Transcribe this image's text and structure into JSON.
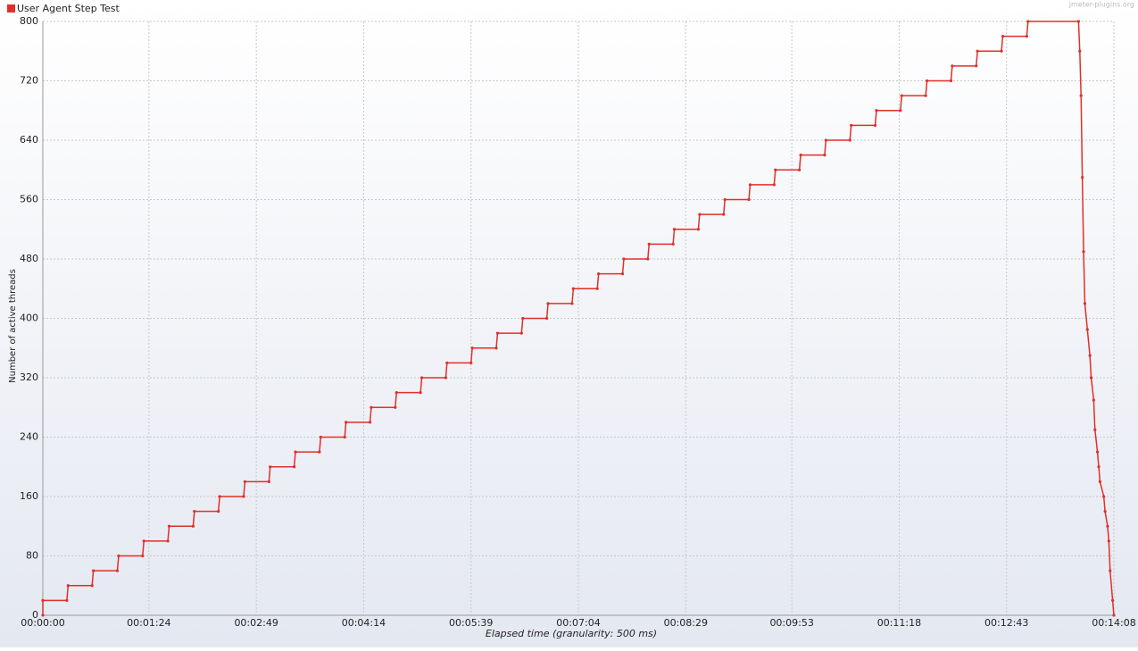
{
  "chart_data": {
    "type": "line",
    "title_watermark": "jmeter-plugins.org",
    "x_label": "Elapsed time (granularity: 500 ms)",
    "y_label": "Number of active threads",
    "legend": "top-left",
    "grid": true,
    "xlim": [
      0,
      848
    ],
    "ylim": [
      0,
      800
    ],
    "xticks": [
      {
        "value": 0,
        "label": "00:00:00"
      },
      {
        "value": 84,
        "label": "00:01:24"
      },
      {
        "value": 169,
        "label": "00:02:49"
      },
      {
        "value": 254,
        "label": "00:04:14"
      },
      {
        "value": 339,
        "label": "00:05:39"
      },
      {
        "value": 424,
        "label": "00:07:04"
      },
      {
        "value": 509,
        "label": "00:08:29"
      },
      {
        "value": 593,
        "label": "00:09:53"
      },
      {
        "value": 678,
        "label": "00:11:18"
      },
      {
        "value": 763,
        "label": "00:12:43"
      },
      {
        "value": 848,
        "label": "00:14:08"
      }
    ],
    "yticks": [
      0,
      80,
      160,
      240,
      320,
      400,
      480,
      560,
      640,
      720,
      800
    ],
    "x": [
      0,
      0,
      19,
      20,
      39,
      40,
      59,
      60,
      79,
      80,
      99,
      100,
      119,
      120,
      139,
      140,
      159,
      160,
      179,
      180,
      199,
      200,
      219,
      220,
      239,
      240,
      259,
      260,
      279,
      280,
      299,
      300,
      319,
      320,
      339,
      340,
      359,
      360,
      379,
      380,
      399,
      400,
      419,
      420,
      439,
      440,
      459,
      460,
      479,
      480,
      499,
      500,
      519,
      520,
      539,
      540,
      559,
      560,
      579,
      580,
      599,
      600,
      619,
      620,
      639,
      640,
      659,
      660,
      679,
      680,
      699,
      700,
      719,
      720,
      739,
      740,
      759,
      760,
      779,
      780,
      820,
      821,
      822,
      823,
      824,
      825,
      827,
      829,
      830,
      832,
      833,
      835,
      836,
      837,
      840,
      841,
      843,
      844,
      845,
      847,
      848
    ],
    "series": [
      {
        "name": "User Agent Step Test",
        "color": "#e0302a",
        "values": [
          0,
          20,
          20,
          40,
          40,
          60,
          60,
          80,
          80,
          100,
          100,
          120,
          120,
          140,
          140,
          160,
          160,
          180,
          180,
          200,
          200,
          220,
          220,
          240,
          240,
          260,
          260,
          280,
          280,
          300,
          300,
          320,
          320,
          340,
          340,
          360,
          360,
          380,
          380,
          400,
          400,
          420,
          420,
          440,
          440,
          460,
          460,
          480,
          480,
          500,
          500,
          520,
          520,
          540,
          540,
          560,
          560,
          580,
          580,
          600,
          600,
          620,
          620,
          640,
          640,
          660,
          660,
          680,
          680,
          700,
          700,
          720,
          720,
          740,
          740,
          760,
          760,
          780,
          780,
          800,
          800,
          760,
          700,
          590,
          490,
          420,
          385,
          350,
          320,
          290,
          250,
          220,
          200,
          180,
          160,
          140,
          120,
          100,
          60,
          20,
          0
        ]
      }
    ]
  }
}
